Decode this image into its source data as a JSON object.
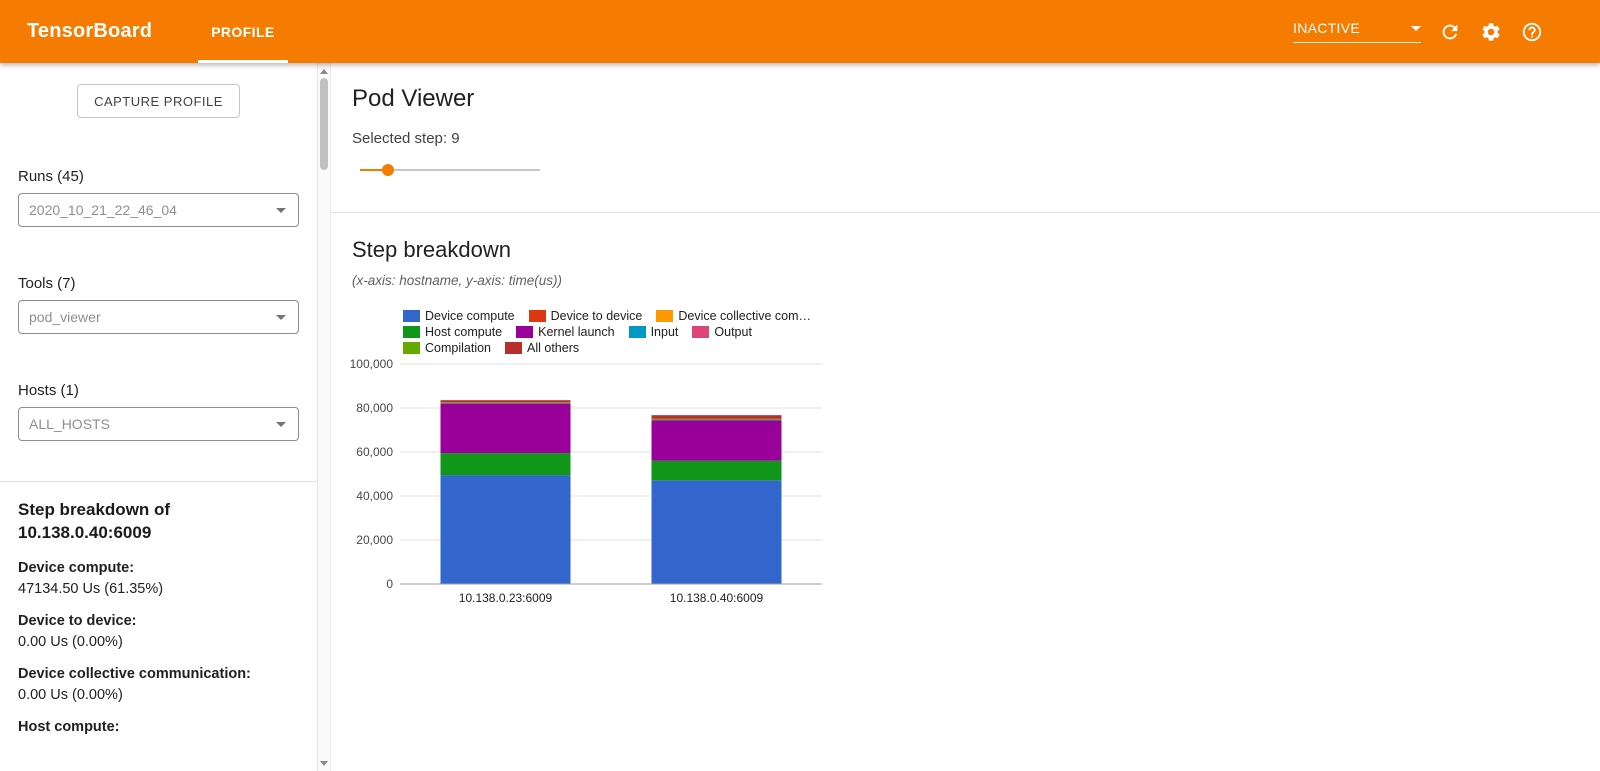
{
  "header": {
    "brand": "TensorBoard",
    "tabs": [
      {
        "label": "PROFILE",
        "active": true
      }
    ],
    "status_value": "INACTIVE",
    "icons": [
      "dropdown-arrow-icon",
      "refresh-icon",
      "settings-icon",
      "help-icon"
    ],
    "colors": {
      "bar": "#f57c00"
    }
  },
  "sidebar": {
    "capture_button": "CAPTURE PROFILE",
    "runs_label": "Runs (45)",
    "runs_value": "2020_10_21_22_46_04",
    "tools_label": "Tools (7)",
    "tools_value": "pod_viewer",
    "hosts_label": "Hosts (1)",
    "hosts_value": "ALL_HOSTS",
    "breakdown_title_line1": "Step breakdown of",
    "breakdown_title_line2": "10.138.0.40:6009",
    "stats": [
      {
        "label": "Device compute:",
        "value": "47134.50 Us (61.35%)"
      },
      {
        "label": "Device to device:",
        "value": "0.00 Us (0.00%)"
      },
      {
        "label": "Device collective communication:",
        "value": "0.00 Us (0.00%)"
      },
      {
        "label": "Host compute:",
        "value": ""
      }
    ]
  },
  "main": {
    "title": "Pod Viewer",
    "selected_step_label": "Selected step: 9",
    "slider_percent": 15.5,
    "section_title": "Step breakdown",
    "axis_note": "(x-axis: hostname, y-axis: time(us))"
  },
  "chart_data": {
    "type": "bar",
    "stacked": true,
    "title": "Step breakdown",
    "xlabel": "hostname",
    "ylabel": "time(us)",
    "categories": [
      "10.138.0.23:6009",
      "10.138.0.40:6009"
    ],
    "series": [
      {
        "name": "Device compute",
        "color": "#3366cc",
        "values": [
          49500,
          47134.5
        ]
      },
      {
        "name": "Device to device",
        "color": "#dc3912",
        "values": [
          0,
          0
        ]
      },
      {
        "name": "Device collective com…",
        "color": "#ff9900",
        "values": [
          0,
          0
        ]
      },
      {
        "name": "Host compute",
        "color": "#109618",
        "values": [
          10000,
          8900
        ]
      },
      {
        "name": "Kernel launch",
        "color": "#990099",
        "values": [
          22500,
          18300
        ]
      },
      {
        "name": "Input",
        "color": "#0099c6",
        "values": [
          200,
          250
        ]
      },
      {
        "name": "Output",
        "color": "#dd4477",
        "values": [
          150,
          200
        ]
      },
      {
        "name": "Compilation",
        "color": "#66aa00",
        "values": [
          300,
          450
        ]
      },
      {
        "name": "All others",
        "color": "#b82e2e",
        "values": [
          900,
          1500
        ]
      }
    ],
    "legend_rows": [
      [
        0,
        1,
        2
      ],
      [
        3,
        4,
        5,
        6
      ],
      [
        7,
        8
      ]
    ],
    "legend_position": "top",
    "grid": true,
    "ylim": [
      0,
      100000
    ],
    "yticks": [
      0,
      20000,
      40000,
      60000,
      80000,
      100000
    ],
    "ytick_labels": [
      "0",
      "20,000",
      "40,000",
      "60,000",
      "80,000",
      "100,000"
    ]
  }
}
